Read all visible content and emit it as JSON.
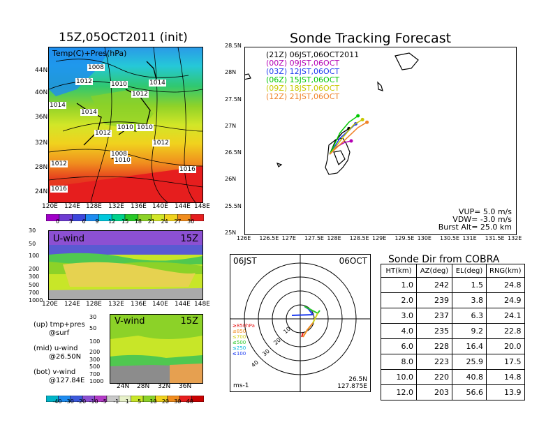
{
  "left": {
    "main_title": "15Z,05OCT2011 (init)",
    "map_label": "Temp(C)+Pres(hPa)",
    "lat_labels": [
      "44N",
      "40N",
      "36N",
      "32N",
      "28N",
      "24N"
    ],
    "lon_labels": [
      "120E",
      "124E",
      "128E",
      "132E",
      "136E",
      "140E",
      "144E",
      "148E"
    ],
    "isobars": [
      "1008",
      "1012",
      "1010",
      "1014",
      "1012",
      "1014",
      "1014",
      "1012",
      "1010",
      "1010",
      "1012",
      "1008",
      "1010",
      "1012",
      "1016",
      "1016"
    ],
    "temp_colorbar": [
      "0",
      "3",
      "6",
      "9",
      "12",
      "15",
      "18",
      "21",
      "24",
      "27",
      "30"
    ],
    "temp_colors": [
      "#a000c8",
      "#6e3cd2",
      "#3c46dc",
      "#1e8cf0",
      "#00c8dc",
      "#00d28c",
      "#28c828",
      "#8cd228",
      "#d2e628",
      "#f0d21e",
      "#f08c1e",
      "#e61e1e"
    ],
    "u_panel": {
      "label": "U-wind",
      "time": "15Z",
      "levels": [
        "30",
        "50",
        "100",
        "200",
        "300",
        "500",
        "700",
        "1000"
      ]
    },
    "v_panel": {
      "label": "V-wind",
      "time": "15Z",
      "levels": [
        "30",
        "50",
        "100",
        "200",
        "300",
        "500",
        "700",
        "1000"
      ],
      "lat_labels": [
        "24N",
        "28N",
        "32N",
        "36N"
      ]
    },
    "wind_colorbar": [
      "-40",
      "-30",
      "-20",
      "-10",
      "-5",
      "-1",
      "1",
      "5",
      "10",
      "20",
      "30",
      "40"
    ],
    "notes": [
      {
        "a": "(up) tmp+pres",
        "b": "@surf"
      },
      {
        "a": "(mid) u-wind",
        "b": "@26.50N"
      },
      {
        "a": "(bot) v-wind",
        "b": "@127.84E"
      }
    ]
  },
  "track": {
    "title": "Sonde Tracking Forecast",
    "lat_labels": [
      "28.5N",
      "28N",
      "27.5N",
      "27N",
      "26.5N",
      "26N",
      "25.5N",
      "25N"
    ],
    "lon_labels": [
      "126E",
      "126.5E",
      "127E",
      "127.5E",
      "128E",
      "128.5E",
      "129E",
      "129.5E",
      "130E",
      "130.5E",
      "131E",
      "131.5E",
      "132E"
    ],
    "legend": [
      {
        "text": "(21Z) 06JST,06OCT2011",
        "color": "#000000"
      },
      {
        "text": "(00Z) 09JST,06OCT",
        "color": "#b400b4"
      },
      {
        "text": "(03Z) 12JST,06OCT",
        "color": "#1e3cf0"
      },
      {
        "text": "(06Z) 15JST,06OCT",
        "color": "#00c800"
      },
      {
        "text": "(09Z) 18JST,06OCT",
        "color": "#c8c800"
      },
      {
        "text": "(12Z) 21JST,06OCT",
        "color": "#f08228"
      }
    ],
    "params": [
      "VUP= 5.0 m/s",
      "VDW= -3.0 m/s",
      "Burst Alt= 25.0 km"
    ]
  },
  "polar": {
    "left_label": "06JST",
    "right_label": "06OCT",
    "ring_labels": [
      "10",
      "20",
      "30",
      "40"
    ],
    "unit": "ms-1",
    "loc_lat": "26.5N",
    "loc_lon": "127.875E",
    "levels": [
      {
        "text": "≥850hPa",
        "color": "#e61e1e"
      },
      {
        "text": "≤850",
        "color": "#f08c1e"
      },
      {
        "text": "≤700",
        "color": "#d2d21e"
      },
      {
        "text": "≤500",
        "color": "#28c828"
      },
      {
        "text": "≤250",
        "color": "#00b4dc"
      },
      {
        "text": "≤100",
        "color": "#1e3cf0"
      }
    ]
  },
  "table": {
    "title": "Sonde Dir from COBRA",
    "headers": [
      "HT(km)",
      "AZ(deg)",
      "EL(deg)",
      "RNG(km)"
    ],
    "rows": [
      [
        "1.0",
        "242",
        "1.5",
        "24.8"
      ],
      [
        "2.0",
        "239",
        "3.8",
        "24.9"
      ],
      [
        "3.0",
        "237",
        "6.3",
        "24.1"
      ],
      [
        "4.0",
        "235",
        "9.2",
        "22.8"
      ],
      [
        "6.0",
        "228",
        "16.4",
        "20.0"
      ],
      [
        "8.0",
        "223",
        "25.9",
        "17.5"
      ],
      [
        "10.0",
        "220",
        "40.8",
        "14.8"
      ],
      [
        "12.0",
        "203",
        "56.6",
        "13.9"
      ]
    ]
  },
  "chart_data": [
    {
      "type": "line",
      "title": "Sonde Tracking Forecast",
      "xlabel": "",
      "ylabel": "",
      "xlim": [
        126,
        132
      ],
      "ylim": [
        25,
        28.5
      ],
      "series": [
        {
          "name": "(21Z) 06JST,06OCT2011",
          "x": [
            127.875,
            128.0,
            128.15,
            128.3
          ],
          "y": [
            26.5,
            26.75,
            26.9,
            26.98
          ]
        },
        {
          "name": "(00Z) 09JST,06OCT",
          "x": [
            127.875,
            128.05,
            128.2,
            128.35
          ],
          "y": [
            26.5,
            26.65,
            26.72,
            26.75
          ]
        },
        {
          "name": "(03Z) 12JST,06OCT",
          "x": [
            127.875,
            128.1,
            128.3,
            128.45
          ],
          "y": [
            26.5,
            26.8,
            26.95,
            27.07
          ]
        },
        {
          "name": "(06Z) 15JST,06OCT",
          "x": [
            127.875,
            128.1,
            128.3,
            128.5
          ],
          "y": [
            26.5,
            26.9,
            27.1,
            27.22
          ]
        },
        {
          "name": "(09Z) 18JST,06OCT",
          "x": [
            127.875,
            128.2,
            128.4,
            128.6
          ],
          "y": [
            26.5,
            26.85,
            27.05,
            27.15
          ]
        },
        {
          "name": "(12Z) 21JST,06OCT",
          "x": [
            127.875,
            128.25,
            128.5,
            128.7
          ],
          "y": [
            26.5,
            26.8,
            27.0,
            27.1
          ]
        }
      ]
    },
    {
      "type": "table",
      "title": "Sonde Dir from COBRA",
      "columns": [
        "HT(km)",
        "AZ(deg)",
        "EL(deg)",
        "RNG(km)"
      ],
      "x": [
        1.0,
        2.0,
        3.0,
        4.0,
        6.0,
        8.0,
        10.0,
        12.0
      ],
      "series": [
        {
          "name": "AZ(deg)",
          "values": [
            242,
            239,
            237,
            235,
            228,
            223,
            220,
            203
          ]
        },
        {
          "name": "EL(deg)",
          "values": [
            1.5,
            3.8,
            6.3,
            9.2,
            16.4,
            25.9,
            40.8,
            56.6
          ]
        },
        {
          "name": "RNG(km)",
          "values": [
            24.8,
            24.9,
            24.1,
            22.8,
            20.0,
            17.5,
            14.8,
            13.9
          ]
        }
      ]
    }
  ]
}
